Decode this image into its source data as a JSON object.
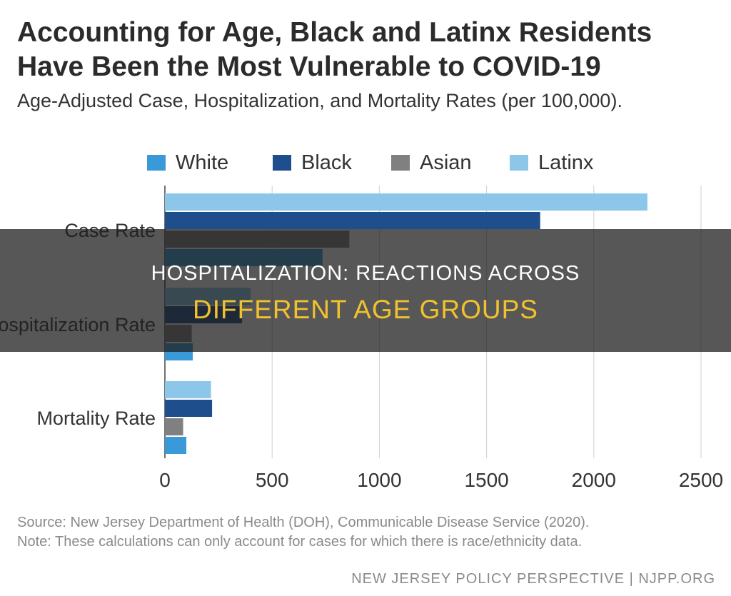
{
  "header": {
    "title": "Accounting for Age, Black and Latinx Residents Have Been the Most Vulnerable to COVID-19",
    "subtitle": "Age-Adjusted Case, Hospitalization, and Mortality Rates (per 100,000)."
  },
  "legend": {
    "items": [
      {
        "label": "White",
        "color": "#3a9ad9"
      },
      {
        "label": "Black",
        "color": "#1f4e8c"
      },
      {
        "label": "Asian",
        "color": "#808080"
      },
      {
        "label": "Latinx",
        "color": "#8cc7ea"
      }
    ]
  },
  "chart_data": {
    "type": "bar",
    "orientation": "horizontal",
    "title": "Age-Adjusted Case, Hospitalization, and Mortality Rates (per 100,000).",
    "categories": [
      "Case Rate",
      "Hospitalization Rate",
      "Mortality Rate"
    ],
    "series": [
      {
        "name": "Latinx",
        "color": "#8cc7ea",
        "values": [
          2250,
          400,
          215
        ]
      },
      {
        "name": "Black",
        "color": "#1f4e8c",
        "values": [
          1750,
          360,
          220
        ]
      },
      {
        "name": "Asian",
        "color": "#808080",
        "values": [
          860,
          125,
          85
        ]
      },
      {
        "name": "White",
        "color": "#3a9ad9",
        "values": [
          735,
          130,
          100
        ]
      }
    ],
    "xlim": [
      0,
      2500
    ],
    "xticks": [
      0,
      500,
      1000,
      1500,
      2000,
      2500
    ],
    "xlabel": "",
    "ylabel": "",
    "grid": true,
    "legend_position": "top"
  },
  "source": {
    "line1": "Source: New Jersey Department of Health (DOH), Communicable Disease Service (2020).",
    "line2": "Note: These calculations can only account for cases for which there is race/ethnicity data."
  },
  "footer": {
    "text": "NEW JERSEY POLICY PERSPECTIVE | NJPP.ORG"
  },
  "overlay": {
    "line1": "HOSPITALIZATION: REACTIONS ACROSS",
    "line2": "DIFFERENT AGE GROUPS"
  }
}
